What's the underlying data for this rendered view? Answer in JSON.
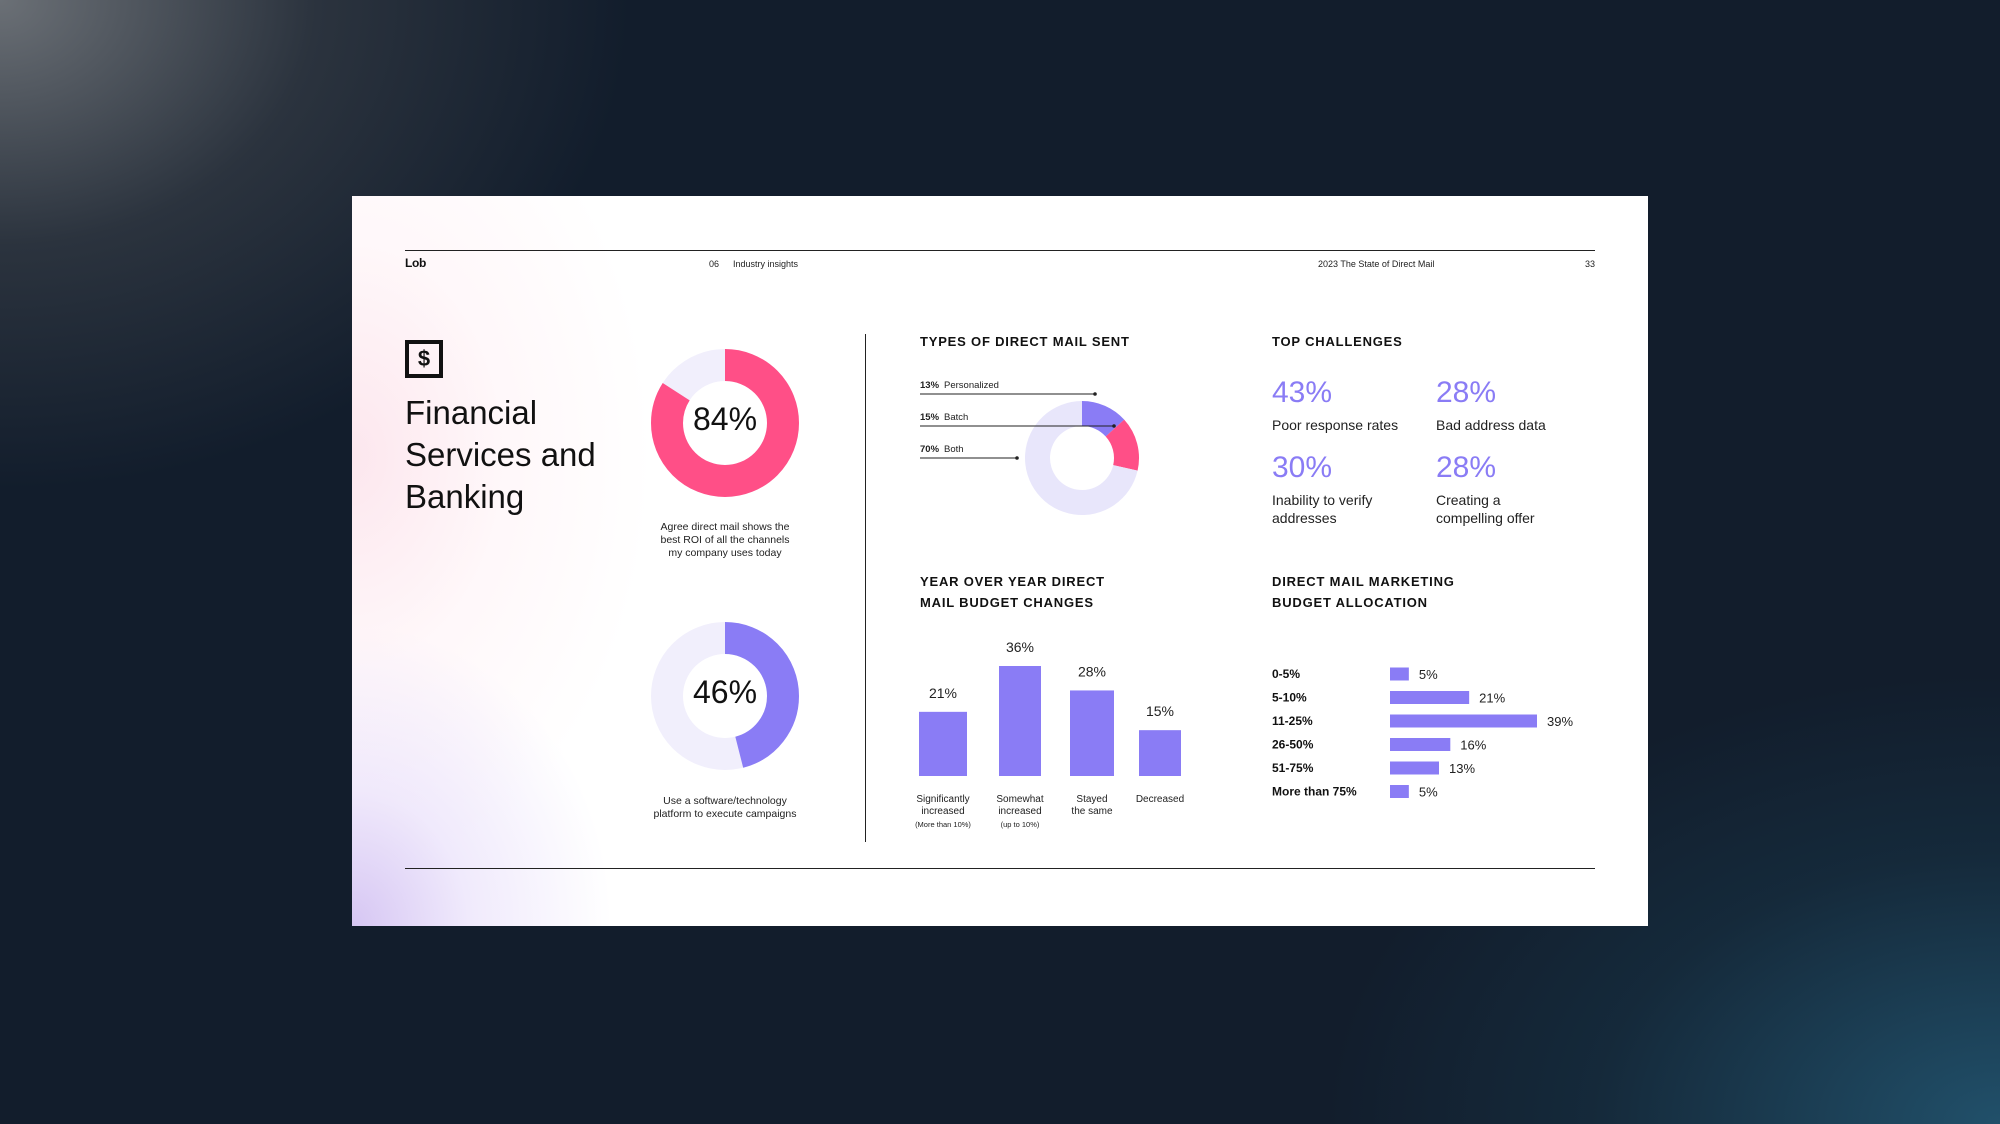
{
  "header": {
    "logo": "Lob",
    "section_number": "06",
    "section_name": "Industry insights",
    "report_title": "2023 The State of Direct Mail",
    "page_number": "33"
  },
  "industry": {
    "icon": "dollar-sign-icon",
    "title_lines": [
      "Financial",
      "Services and",
      "Banking"
    ]
  },
  "stats": [
    {
      "value": "84%",
      "fraction": 0.84,
      "color": "#ff4f87",
      "caption_lines": [
        "Agree direct mail shows the",
        "best ROI of all the channels",
        "my company uses today"
      ]
    },
    {
      "value": "46%",
      "fraction": 0.46,
      "color": "#8a7cf5",
      "caption_lines": [
        "Use a software/technology",
        "platform to execute campaigns"
      ]
    }
  ],
  "types_section": {
    "heading": "TYPES OF DIRECT MAIL SENT"
  },
  "challenges": {
    "heading": "TOP CHALLENGES",
    "items": [
      {
        "value": "43%",
        "lines": [
          "Poor response rates"
        ]
      },
      {
        "value": "28%",
        "lines": [
          "Bad address data"
        ]
      },
      {
        "value": "30%",
        "lines": [
          "Inability to verify",
          "addresses"
        ]
      },
      {
        "value": "28%",
        "lines": [
          "Creating a",
          "compelling offer"
        ]
      }
    ]
  },
  "budget_section": {
    "heading_lines": [
      "YEAR OVER YEAR DIRECT",
      "MAIL BUDGET CHANGES"
    ]
  },
  "allocation_section": {
    "heading_lines": [
      "DIRECT MAIL MARKETING",
      "BUDGET ALLOCATION"
    ]
  },
  "colors": {
    "pink": "#ff4f87",
    "purple": "#8a7cf5",
    "light_purple": "#e8e6fb",
    "ring_bg": "#f1effc"
  },
  "chart_data": [
    {
      "type": "pie",
      "title": "TYPES OF DIRECT MAIL SENT",
      "slices": [
        {
          "label": "Personalized",
          "value": 13,
          "color": "#8a7cf5"
        },
        {
          "label": "Batch",
          "value": 15,
          "color": "#ff4f87"
        },
        {
          "label": "Both",
          "value": 70,
          "color": "#e8e6fb"
        }
      ]
    },
    {
      "type": "bar",
      "title": "YEAR OVER YEAR DIRECT MAIL BUDGET CHANGES",
      "categories": [
        {
          "lines": [
            "Significantly",
            "increased"
          ],
          "note": "(More than 10%)"
        },
        {
          "lines": [
            "Somewhat",
            "increased"
          ],
          "note": "(up to 10%)"
        },
        {
          "lines": [
            "Stayed",
            "the same"
          ],
          "note": ""
        },
        {
          "lines": [
            "Decreased"
          ],
          "note": ""
        }
      ],
      "values": [
        21,
        36,
        28,
        15
      ],
      "labels": [
        "21%",
        "36%",
        "28%",
        "15%"
      ],
      "ylim": [
        0,
        40
      ]
    },
    {
      "type": "bar",
      "orientation": "horizontal",
      "title": "DIRECT MAIL MARKETING BUDGET ALLOCATION",
      "categories": [
        "0-5%",
        "5-10%",
        "11-25%",
        "26-50%",
        "51-75%",
        "More than 75%"
      ],
      "values": [
        5,
        21,
        39,
        16,
        13,
        5
      ],
      "labels": [
        "5%",
        "21%",
        "39%",
        "16%",
        "13%",
        "5%"
      ]
    }
  ]
}
